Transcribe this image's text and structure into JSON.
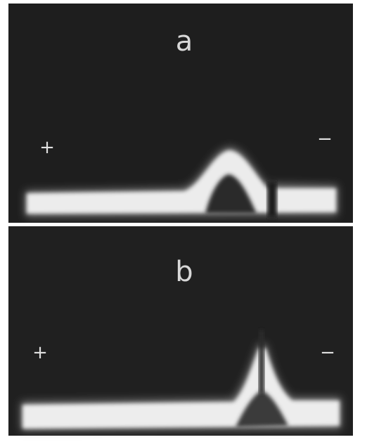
{
  "panels": [
    {
      "label": "a",
      "plus": "+",
      "minus": "−"
    },
    {
      "label": "b",
      "plus": "+",
      "minus": "−"
    }
  ]
}
